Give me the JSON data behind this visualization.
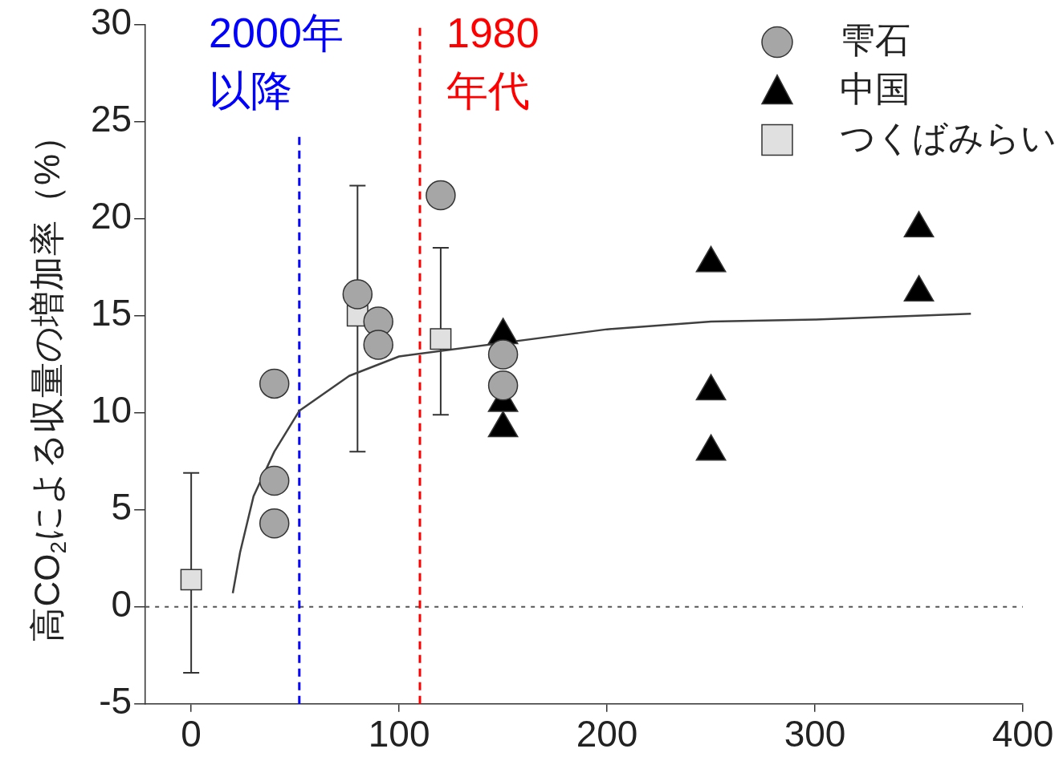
{
  "chart_data": {
    "type": "scatter",
    "ylabel": "高CO$_{2}$による収量の増加率（%）",
    "xlim": [
      -22,
      400
    ],
    "xticks": [
      0,
      100,
      200,
      300,
      400
    ],
    "ylim": [
      -5,
      30
    ],
    "yticks": [
      -5,
      0,
      5,
      10,
      15,
      20,
      25,
      30
    ],
    "grid": false,
    "legend": "top right",
    "series": [
      {
        "name": "雫石",
        "marker": "circle",
        "color": "#a6a6a6",
        "x": [
          40,
          40,
          40,
          80,
          90,
          90,
          120,
          150,
          150
        ],
        "values": [
          11.5,
          6.5,
          4.3,
          16.1,
          14.7,
          13.5,
          21.2,
          13.0,
          11.4
        ]
      },
      {
        "name": "中国",
        "marker": "triangle",
        "color": "#000000",
        "x": [
          150,
          150,
          150,
          250,
          250,
          250,
          350,
          350
        ],
        "values": [
          14.0,
          10.5,
          9.2,
          17.7,
          11.1,
          8.0,
          19.5,
          16.2
        ]
      },
      {
        "name": "つくばみらい",
        "marker": "square",
        "color": "#e0e0e0",
        "x": [
          0,
          80,
          120
        ],
        "values": [
          1.4,
          15.0,
          13.8
        ],
        "errors": [
          [
            -3.4,
            6.9
          ],
          [
            8.0,
            21.7
          ],
          [
            9.9,
            18.5
          ]
        ]
      },
      {
        "type": "line",
        "marker": "none",
        "line_style": "solid",
        "color": "#404040",
        "x": [
          20,
          23.5,
          30,
          40,
          52,
          76,
          100,
          120,
          150,
          200,
          250,
          300,
          375
        ],
        "values": [
          0.7,
          2.8,
          5.7,
          8.0,
          10.1,
          11.9,
          12.9,
          null,
          null,
          14.3,
          14.7,
          14.8,
          15.1
        ]
      }
    ],
    "ref_lines": [
      {
        "axis": "y",
        "value": 0,
        "color": "#555555",
        "line_style": "dotted"
      },
      {
        "axis": "x",
        "value": 52,
        "label": "2000年以降",
        "color": "#0000ff",
        "line_style": "dashed"
      },
      {
        "axis": "x",
        "value": 110,
        "label": "1980年代",
        "color": "#ff0000",
        "line_style": "dashed"
      }
    ]
  }
}
